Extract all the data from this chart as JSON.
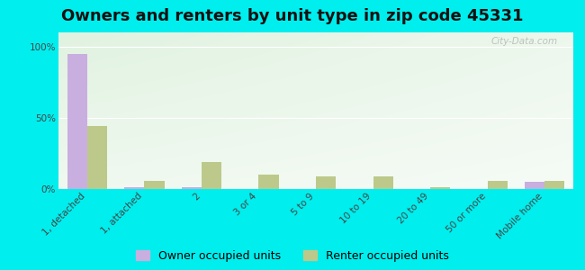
{
  "title": "Owners and renters by unit type in zip code 45331",
  "categories": [
    "1, detached",
    "1, attached",
    "2",
    "3 or 4",
    "5 to 9",
    "10 to 19",
    "20 to 49",
    "50 or more",
    "Mobile home"
  ],
  "owner_values": [
    95,
    1,
    1,
    0,
    0,
    0,
    0,
    0,
    5
  ],
  "renter_values": [
    44,
    6,
    19,
    10,
    9,
    9,
    1,
    6,
    6
  ],
  "owner_color": "#c9aee0",
  "renter_color": "#bcc98a",
  "background_color": "#00eeee",
  "plot_bg_color": "#deeedd",
  "ylabel_ticks": [
    "0%",
    "50%",
    "100%"
  ],
  "yticks": [
    0,
    50,
    100
  ],
  "ylim": [
    0,
    110
  ],
  "bar_width": 0.35,
  "title_fontsize": 13,
  "tick_fontsize": 7.5,
  "legend_fontsize": 9,
  "watermark": "City-Data.com"
}
